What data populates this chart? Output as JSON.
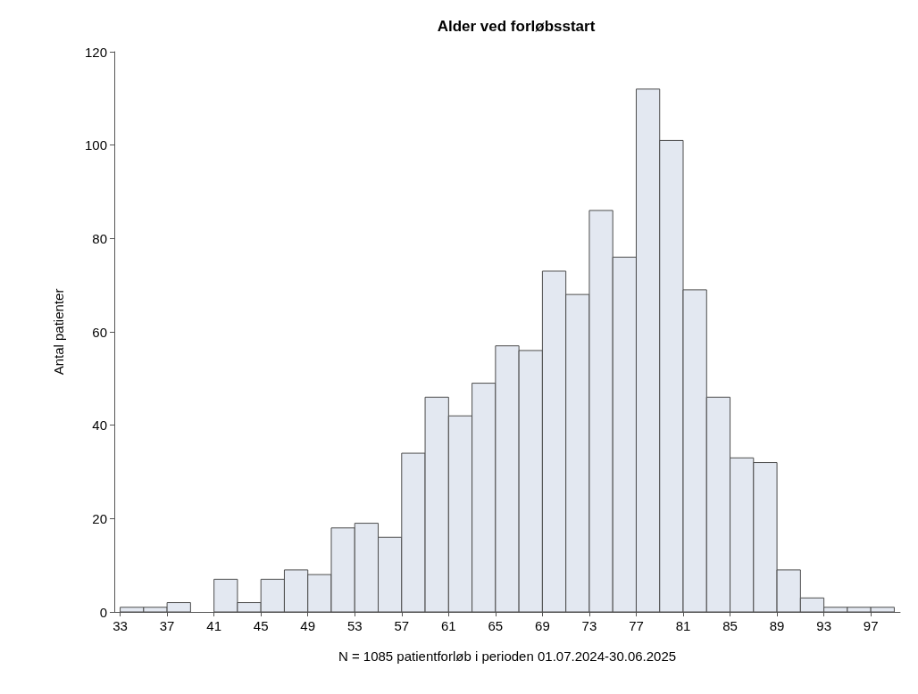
{
  "chart_data": {
    "type": "histogram",
    "title": "Alder ved forløbsstart",
    "xlabel": "N = 1085 patientforløb i perioden 01.07.2024-30.06.2025",
    "ylabel": "Antal patienter",
    "bins": [
      33,
      35,
      37,
      39,
      41,
      43,
      45,
      47,
      49,
      51,
      53,
      55,
      57,
      59,
      61,
      63,
      65,
      67,
      69,
      71,
      73,
      75,
      77,
      79,
      81,
      83,
      85,
      87,
      89,
      91,
      93,
      95,
      97,
      99
    ],
    "values": [
      1,
      1,
      2,
      0,
      7,
      2,
      7,
      9,
      8,
      18,
      19,
      16,
      34,
      46,
      42,
      49,
      57,
      56,
      73,
      68,
      86,
      76,
      112,
      101,
      69,
      46,
      33,
      32,
      9,
      3,
      1,
      1,
      1
    ],
    "color": "#e3e8f1",
    "xlim": [
      32.5,
      99.5
    ],
    "xticks": [
      33,
      37,
      41,
      45,
      49,
      53,
      57,
      61,
      65,
      69,
      73,
      77,
      81,
      85,
      89,
      93,
      97
    ],
    "ylim": [
      0,
      120
    ],
    "yticks": [
      0,
      20,
      40,
      60,
      80,
      100,
      120
    ],
    "grid": false
  }
}
